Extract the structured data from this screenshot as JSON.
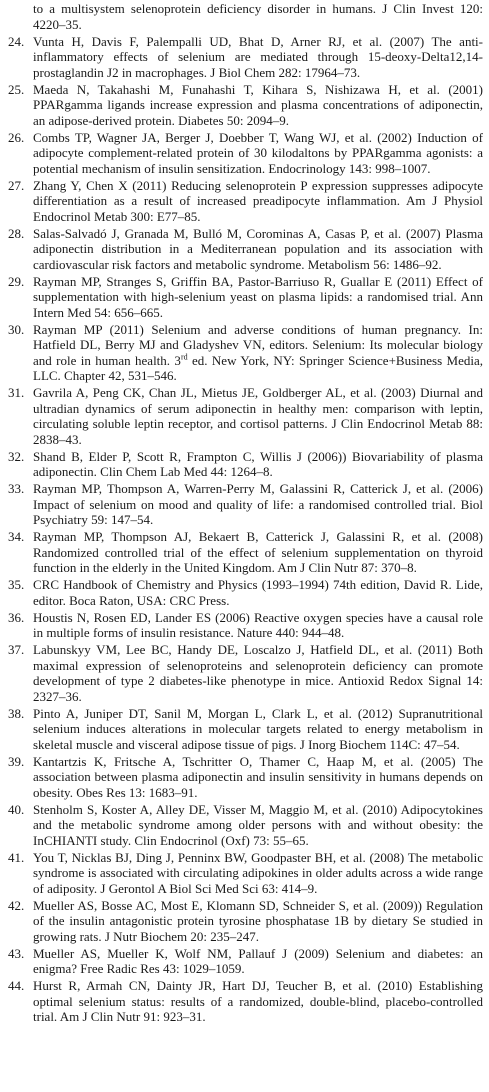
{
  "continuation": "to a multisystem selenoprotein deficiency disorder in humans. J Clin Invest 120: 4220–35.",
  "references": [
    {
      "number": "24.",
      "text": "Vunta H, Davis F, Palempalli UD, Bhat D, Arner RJ, et al. (2007) The anti-inflammatory effects of selenium are mediated through 15-deoxy-Delta12,14-prostaglandin J2 in macrophages. J Biol Chem 282: 17964–73."
    },
    {
      "number": "25.",
      "text": "Maeda N, Takahashi M, Funahashi T, Kihara S, Nishizawa H, et al. (2001) PPARgamma ligands increase expression and plasma concentrations of adiponectin, an adipose-derived protein. Diabetes 50: 2094–9."
    },
    {
      "number": "26.",
      "text": "Combs TP, Wagner JA, Berger J, Doebber T, Wang WJ, et al. (2002) Induction of adipocyte complement-related protein of 30 kilodaltons by PPARgamma agonists: a potential mechanism of insulin sensitization. Endocrinology 143: 998–1007."
    },
    {
      "number": "27.",
      "text": "Zhang Y, Chen X (2011) Reducing selenoprotein P expression suppresses adipocyte differentiation as a result of increased preadipocyte inflammation. Am J Physiol Endocrinol Metab 300: E77–85."
    },
    {
      "number": "28.",
      "text": "Salas-Salvadó J, Granada M, Bulló M, Corominas A, Casas P, et al. (2007) Plasma adiponectin distribution in a Mediterranean population and its association with cardiovascular risk factors and metabolic syndrome. Metabolism 56: 1486–92."
    },
    {
      "number": "29.",
      "text": "Rayman MP, Stranges S, Griffin BA, Pastor-Barriuso R, Guallar E (2011) Effect of supplementation with high-selenium yeast on plasma lipids: a randomised trial. Ann Intern Med 54: 656–665."
    },
    {
      "number": "30.",
      "text": "Rayman MP (2011) Selenium and adverse conditions of human pregnancy. In: Hatfield DL, Berry MJ and Gladyshev VN, editors. Selenium: Its molecular biology and role in human health. 3",
      "sup": "rd",
      "text_after": " ed. New York, NY: Springer Science+Business Media, LLC. Chapter 42, 531–546."
    },
    {
      "number": "31.",
      "text": "Gavrila A, Peng CK, Chan JL, Mietus JE, Goldberger AL, et al. (2003) Diurnal and ultradian dynamics of serum adiponectin in healthy men: comparison with leptin, circulating soluble leptin receptor, and cortisol patterns. J Clin Endocrinol Metab 88: 2838–43."
    },
    {
      "number": "32.",
      "text": "Shand B, Elder P, Scott R, Frampton C, Willis J (2006)) Biovariability of plasma adiponectin. Clin Chem Lab Med 44: 1264–8."
    },
    {
      "number": "33.",
      "text": "Rayman MP, Thompson A, Warren-Perry M, Galassini R, Catterick J, et al. (2006) Impact of selenium on mood and quality of life: a randomised controlled trial. Biol Psychiatry 59: 147–54."
    },
    {
      "number": "34.",
      "text": "Rayman MP, Thompson AJ, Bekaert B, Catterick J, Galassini R, et al. (2008) Randomized controlled trial of the effect of selenium supplementation on thyroid function in the elderly in the United Kingdom. Am J Clin Nutr 87: 370–8."
    },
    {
      "number": "35.",
      "text": "CRC Handbook of Chemistry and Physics (1993–1994) 74th edition, David R. Lide, editor. Boca Raton, USA: CRC Press."
    },
    {
      "number": "36.",
      "text": "Houstis N, Rosen ED, Lander ES (2006) Reactive oxygen species have a causal role in multiple forms of insulin resistance. Nature 440: 944–48."
    },
    {
      "number": "37.",
      "text": "Labunskyy VM, Lee BC, Handy DE, Loscalzo J, Hatfield DL, et al. (2011) Both maximal expression of selenoproteins and selenoprotein deficiency can promote development of type 2 diabetes-like phenotype in mice. Antioxid Redox Signal 14: 2327–36."
    },
    {
      "number": "38.",
      "text": "Pinto A, Juniper DT, Sanil M, Morgan L, Clark L, et al. (2012) Supranutritional selenium induces alterations in molecular targets related to energy metabolism in skeletal muscle and visceral adipose tissue of pigs. J Inorg Biochem 114C: 47–54."
    },
    {
      "number": "39.",
      "text": "Kantartzis K, Fritsche A, Tschritter O, Thamer C, Haap M, et al. (2005) The association between plasma adiponectin and insulin sensitivity in humans depends on obesity. Obes Res 13: 1683–91."
    },
    {
      "number": "40.",
      "text": "Stenholm S, Koster A, Alley DE, Visser M, Maggio M, et al. (2010) Adipocytokines and the metabolic syndrome among older persons with and without obesity: the InCHIANTI study. Clin Endocrinol (Oxf) 73: 55–65."
    },
    {
      "number": "41.",
      "text": "You T, Nicklas BJ, Ding J, Penninx BW, Goodpaster BH, et al. (2008) The metabolic syndrome is associated with circulating adipokines in older adults across a wide range of adiposity. J Gerontol A Biol Sci Med Sci 63: 414–9."
    },
    {
      "number": "42.",
      "text": "Mueller AS, Bosse AC, Most E, Klomann SD, Schneider S, et al. (2009)) Regulation of the insulin antagonistic protein tyrosine phosphatase 1B by dietary Se studied in growing rats. J Nutr Biochem 20: 235–247."
    },
    {
      "number": "43.",
      "text": "Mueller AS, Mueller K, Wolf NM, Pallauf J (2009) Selenium and diabetes: an enigma? Free Radic Res 43: 1029–1059."
    },
    {
      "number": "44.",
      "text": "Hurst R, Armah CN, Dainty JR, Hart DJ, Teucher B, et al. (2010) Establishing optimal selenium status: results of a randomized, double-blind, placebo-controlled trial. Am J Clin Nutr 91: 923–31."
    }
  ]
}
